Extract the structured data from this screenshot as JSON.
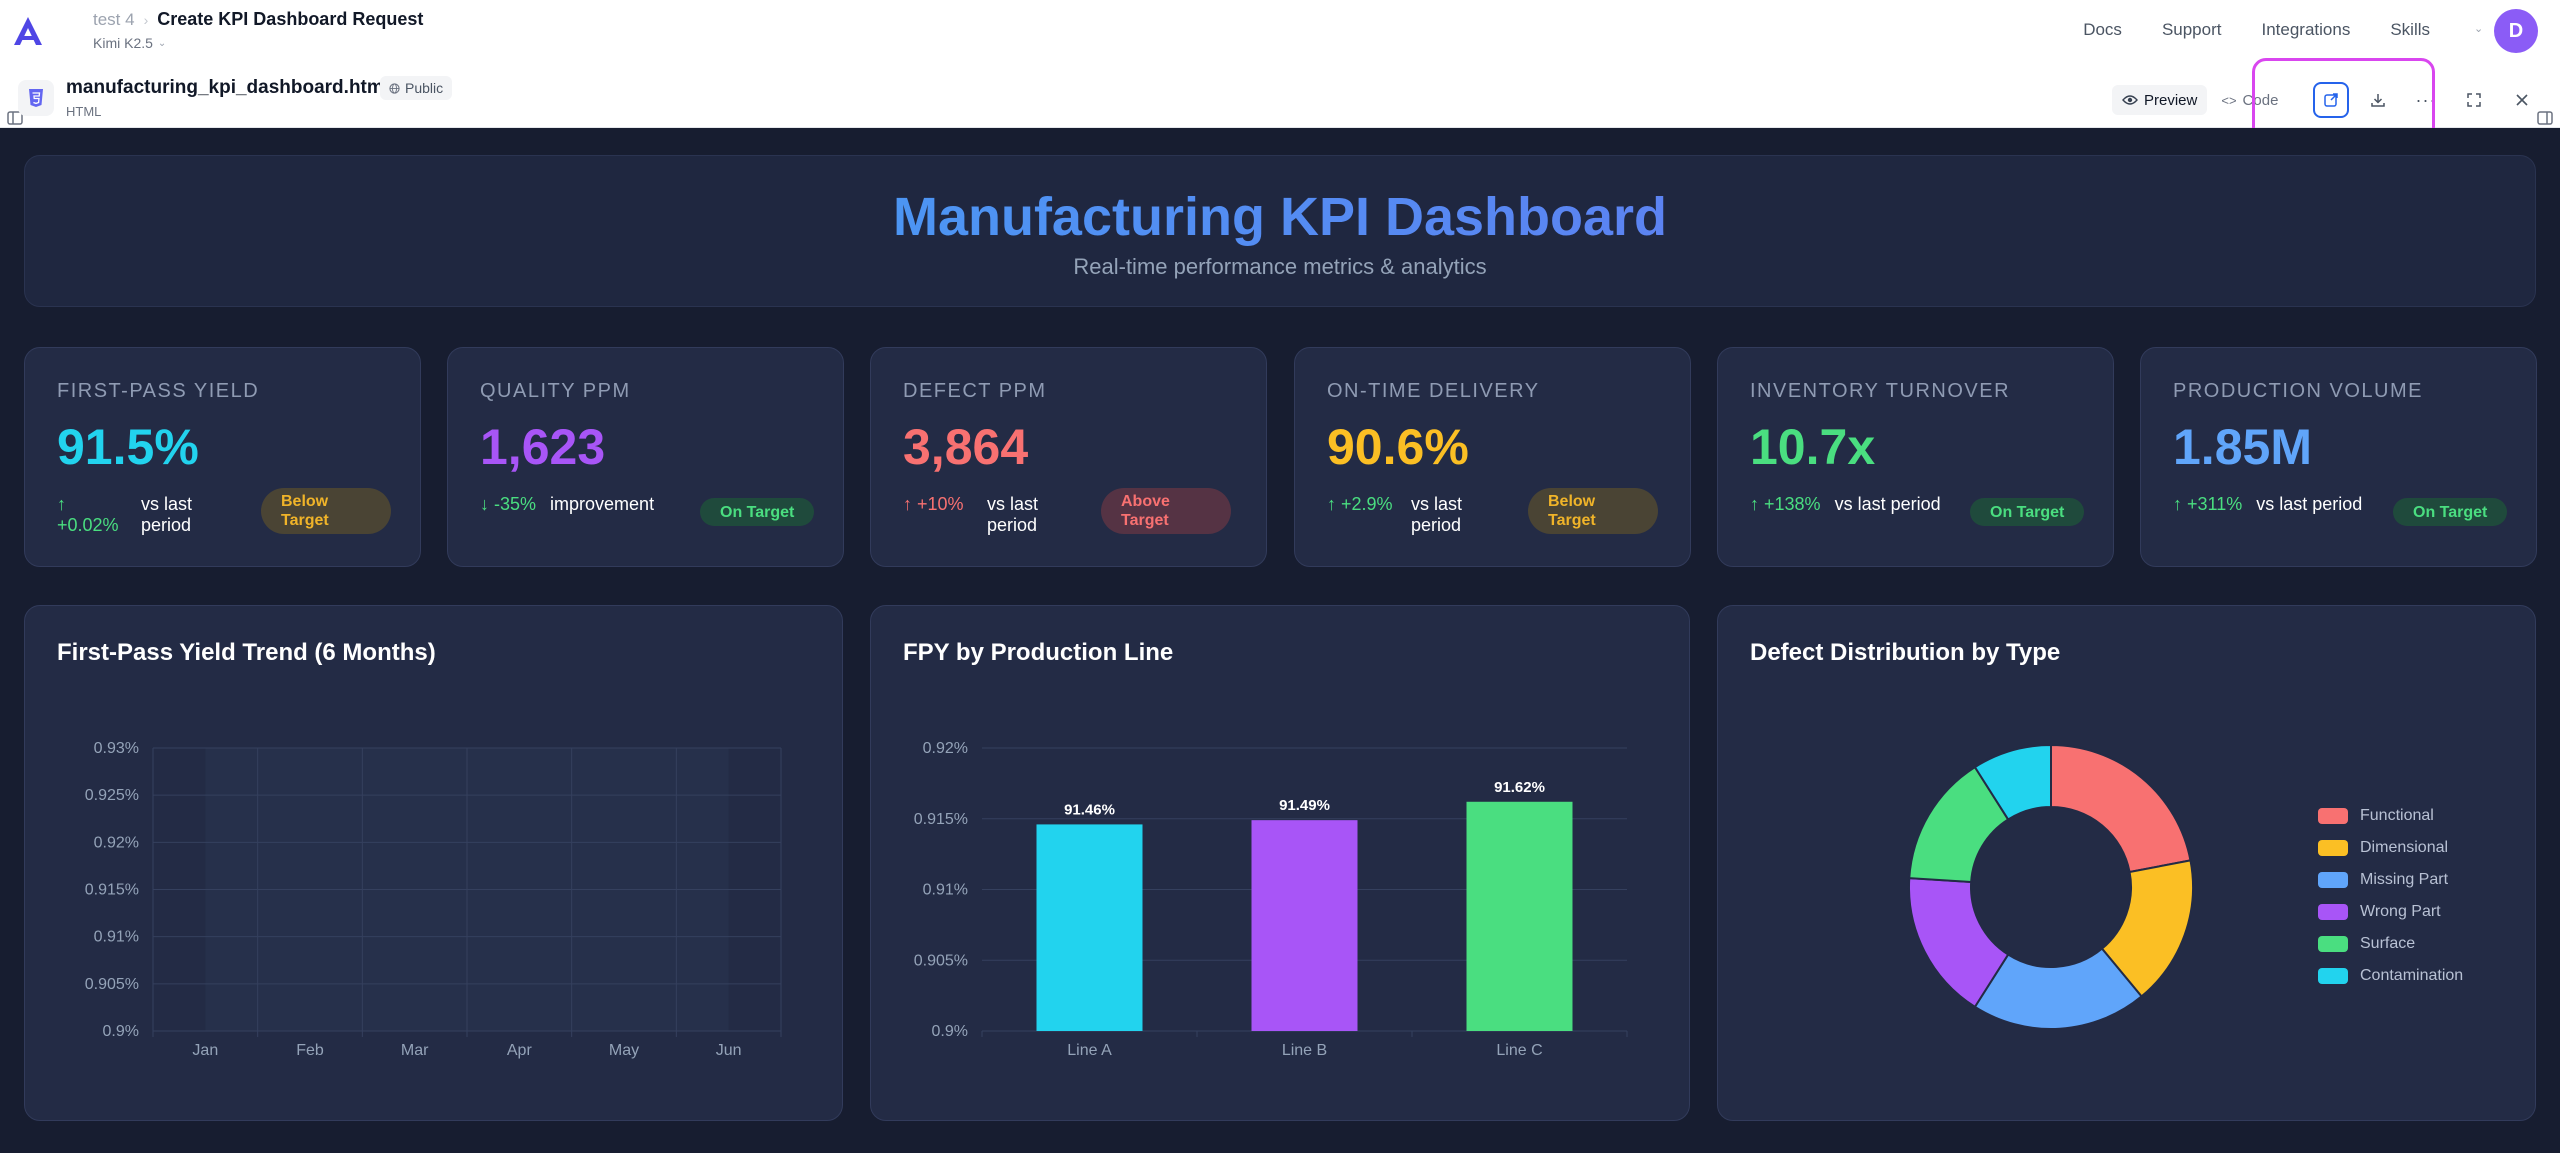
{
  "app": {
    "project": "test 4",
    "chat_title": "Create KPI Dashboard Request",
    "model": "Kimi K2.5",
    "nav": [
      "Docs",
      "Support",
      "Integrations",
      "Skills"
    ],
    "avatar_initial": "D",
    "accent": "#8b5cf6"
  },
  "artifact": {
    "file_name": "manufacturing_kpi_dashboard.html",
    "file_type": "HTML",
    "visibility": "Public",
    "view_preview": "Preview",
    "view_code": "Code",
    "active_view": "Preview",
    "icons": [
      "html5-icon",
      "globe-icon",
      "eye-icon",
      "code-icon",
      "open-external-icon",
      "download-icon",
      "more-icon",
      "fullscreen-icon",
      "close-icon"
    ]
  },
  "dashboard": {
    "title": "Manufacturing KPI Dashboard",
    "subtitle": "Real-time performance metrics & analytics",
    "kpis": [
      {
        "label": "First-Pass Yield",
        "value": "91.5%",
        "value_color": "#22d3ee",
        "change": "↑ +0.02%",
        "change_good": true,
        "context": "vs last period",
        "badge": "Below Target",
        "badge_type": "below"
      },
      {
        "label": "Quality PPM",
        "value": "1,623",
        "value_color": "#a855f7",
        "change": "↓ -35%",
        "change_good": true,
        "context": "improvement",
        "badge": "On Target",
        "badge_type": "on"
      },
      {
        "label": "Defect PPM",
        "value": "3,864",
        "value_color": "#f87171",
        "change": "↑ +10%",
        "change_good": false,
        "context": "vs last period",
        "badge": "Above Target",
        "badge_type": "above"
      },
      {
        "label": "On-Time Delivery",
        "value": "90.6%",
        "value_color": "#fbbf24",
        "change": "↑ +2.9%",
        "change_good": true,
        "context": "vs last period",
        "badge": "Below Target",
        "badge_type": "below"
      },
      {
        "label": "Inventory Turnover",
        "value": "10.7x",
        "value_color": "#4ade80",
        "change": "↑ +138%",
        "change_good": true,
        "context": "vs last period",
        "badge": "On Target",
        "badge_type": "on"
      },
      {
        "label": "Production Volume",
        "value": "1.85M",
        "value_color": "#60a5fa",
        "change": "↑ +311%",
        "change_good": true,
        "context": "vs last period",
        "badge": "On Target",
        "badge_type": "on"
      }
    ]
  },
  "chart_data": [
    {
      "type": "line",
      "title": "First-Pass Yield Trend (6 Months)",
      "categories": [
        "Jan",
        "Feb",
        "Mar",
        "Apr",
        "May",
        "Jun"
      ],
      "series": [],
      "ylim": [
        0.9,
        0.93
      ],
      "yticks": [
        "0.93%",
        "0.925%",
        "0.92%",
        "0.915%",
        "0.91%",
        "0.905%",
        "0.9%"
      ],
      "grid": true
    },
    {
      "type": "bar",
      "title": "FPY by Production Line",
      "categories": [
        "Line A",
        "Line B",
        "Line C"
      ],
      "values": [
        91.46,
        91.49,
        91.62
      ],
      "data_labels": [
        "91.46%",
        "91.49%",
        "91.62%"
      ],
      "colors": [
        "#22d3ee",
        "#a855f7",
        "#4ade80"
      ],
      "ylim": [
        0.9,
        0.92
      ],
      "yticks": [
        "0.92%",
        "0.915%",
        "0.91%",
        "0.905%",
        "0.9%"
      ],
      "grid": true
    },
    {
      "type": "pie",
      "title": "Defect Distribution by Type",
      "categories": [
        "Functional",
        "Dimensional",
        "Missing Part",
        "Wrong Part",
        "Surface",
        "Contamination"
      ],
      "values": [
        22,
        17,
        20,
        17,
        15,
        9
      ],
      "colors": [
        "#f87171",
        "#fbbf24",
        "#60a5fa",
        "#a855f7",
        "#4ade80",
        "#22d3ee"
      ],
      "donut": true,
      "legend": "right"
    }
  ]
}
